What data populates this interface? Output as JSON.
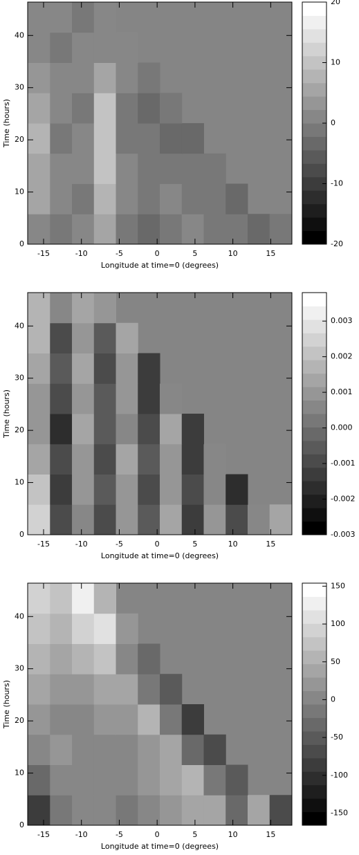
{
  "chart_data": [
    {
      "type": "heatmap",
      "xlabel": "Longitude at time=0 (degrees)",
      "ylabel": "Time (hours)",
      "xlim": [
        -17.1,
        17.8
      ],
      "ylim": [
        0,
        46.4
      ],
      "xticks": [
        -15,
        -10,
        -5,
        0,
        5,
        10,
        15
      ],
      "yticks": [
        0,
        10,
        20,
        30,
        40
      ],
      "zlim": [
        -20,
        20
      ],
      "zticks": [
        -20,
        -10,
        0,
        10,
        20
      ],
      "levels": 18,
      "x": [
        -15.6,
        -12.7,
        -9.8,
        -6.9,
        -4,
        -1.1,
        1.8,
        4.7,
        7.6,
        10.5,
        13.4,
        16.3
      ],
      "y": [
        2.9,
        8.7,
        14.5,
        20.3,
        26.1,
        31.9,
        37.7,
        43.5
      ],
      "z": [
        [
          2,
          -1,
          1,
          6,
          -1,
          -4,
          -1,
          1,
          -2,
          -1,
          -3,
          -1
        ],
        [
          5,
          0,
          -1,
          8,
          1,
          -1,
          0,
          -1,
          -2,
          -4,
          null,
          null
        ],
        [
          6,
          1,
          0,
          9,
          0,
          -1,
          -1,
          -2,
          -1,
          null,
          null,
          null
        ],
        [
          7,
          -1,
          1,
          10,
          -1,
          -2,
          -3,
          -3,
          null,
          null,
          null,
          null
        ],
        [
          6,
          0,
          -1,
          9,
          -1,
          -3,
          -2,
          null,
          null,
          null,
          null,
          null
        ],
        [
          3,
          1,
          0,
          5,
          0,
          -2,
          null,
          null,
          null,
          null,
          null,
          null
        ],
        [
          1,
          -1,
          1,
          2,
          0,
          null,
          null,
          null,
          null,
          null,
          null,
          null
        ],
        [
          0,
          1,
          -1,
          1,
          null,
          null,
          null,
          null,
          null,
          null,
          null,
          null
        ]
      ]
    },
    {
      "type": "heatmap",
      "xlabel": "Longitude at time=0 (degrees)",
      "ylabel": "Time (hours)",
      "xlim": [
        -17.1,
        17.8
      ],
      "ylim": [
        0,
        46.4
      ],
      "xticks": [
        -15,
        -10,
        -5,
        0,
        5,
        10,
        15
      ],
      "yticks": [
        0,
        10,
        20,
        30,
        40
      ],
      "zlim": [
        -0.003,
        0.0038
      ],
      "zticks": [
        -0.003,
        -0.002,
        -0.001,
        {
          "value": 0,
          "label": "0.000"
        },
        0.001,
        0.002,
        0.003
      ],
      "levels": 18,
      "x": [
        -15.6,
        -12.7,
        -9.8,
        -6.9,
        -4,
        -1.1,
        1.8,
        4.7,
        7.6,
        10.5,
        13.4,
        16.3
      ],
      "y": [
        2.9,
        8.7,
        14.5,
        20.3,
        26.1,
        31.9,
        37.7,
        43.5
      ],
      "z": [
        [
          0.0025,
          -0.001,
          0.0005,
          -0.0008,
          0.001,
          -0.0005,
          0.0012,
          -0.0012,
          0.0008,
          -0.001,
          0.0005,
          0.0015
        ],
        [
          0.002,
          -0.0012,
          0.0008,
          -0.0006,
          0.0009,
          -0.0008,
          0.0011,
          -0.001,
          0.0006,
          -0.0015,
          null,
          null
        ],
        [
          0.0015,
          -0.0008,
          0.001,
          -0.001,
          0.0012,
          -0.0004,
          0.0008,
          -0.0012,
          0.0004,
          null,
          null,
          null
        ],
        [
          0.001,
          -0.0015,
          0.0012,
          -0.0005,
          0.0006,
          -0.0009,
          0.0013,
          -0.0014,
          null,
          null,
          null,
          null
        ],
        [
          0.0008,
          -0.001,
          0.0009,
          -0.0007,
          0.0011,
          -0.0012,
          0.0007,
          null,
          null,
          null,
          null,
          null
        ],
        [
          0.0012,
          -0.0006,
          0.0013,
          -0.0011,
          0.0008,
          -0.0013,
          null,
          null,
          null,
          null,
          null,
          null
        ],
        [
          0.0016,
          -0.0009,
          0.001,
          -0.0004,
          0.0012,
          null,
          null,
          null,
          null,
          null,
          null,
          null
        ],
        [
          0.0018,
          0.0005,
          0.0014,
          0.0009,
          null,
          null,
          null,
          null,
          null,
          null,
          null,
          null
        ]
      ]
    },
    {
      "type": "heatmap",
      "xlabel": "Longitude at time=0 (degrees)",
      "ylabel": "Time (hours)",
      "xlim": [
        -17.1,
        17.8
      ],
      "ylim": [
        0,
        46.4
      ],
      "xticks": [
        -15,
        -10,
        -5,
        0,
        5,
        10,
        15
      ],
      "yticks": [
        0,
        10,
        20,
        30,
        40
      ],
      "zlim": [
        -166,
        154
      ],
      "zticks": [
        -150,
        -100,
        -50,
        0,
        50,
        100,
        150
      ],
      "levels": 18,
      "x": [
        -15.6,
        -12.7,
        -9.8,
        -6.9,
        -4,
        -1.1,
        1.8,
        4.7,
        7.6,
        10.5,
        13.4,
        16.3
      ],
      "y": [
        2.9,
        8.7,
        14.5,
        20.3,
        26.1,
        31.9,
        37.7,
        43.5
      ],
      "z": [
        [
          -80,
          -20,
          10,
          0,
          -10,
          10,
          20,
          40,
          30,
          -40,
          30,
          -60
        ],
        [
          -30,
          0,
          10,
          10,
          0,
          20,
          30,
          50,
          -20,
          -50,
          null,
          null
        ],
        [
          10,
          20,
          10,
          0,
          10,
          20,
          40,
          -30,
          -60,
          null,
          null,
          null
        ],
        [
          20,
          10,
          10,
          20,
          20,
          50,
          -10,
          -90,
          null,
          null,
          null,
          null
        ],
        [
          40,
          20,
          20,
          30,
          40,
          -20,
          -50,
          null,
          null,
          null,
          null,
          null
        ],
        [
          60,
          40,
          60,
          80,
          10,
          -30,
          null,
          null,
          null,
          null,
          null,
          null
        ],
        [
          80,
          60,
          90,
          110,
          20,
          null,
          null,
          null,
          null,
          null,
          null,
          null
        ],
        [
          100,
          70,
          120,
          60,
          null,
          null,
          null,
          null,
          null,
          null,
          null,
          null
        ]
      ]
    }
  ]
}
